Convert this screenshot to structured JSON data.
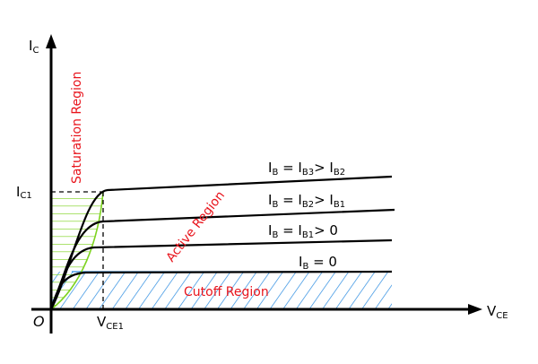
{
  "axes": {
    "y_label": "I",
    "y_label_sub": "C",
    "x_label": "V",
    "x_label_sub": "CE",
    "origin": "O",
    "ic1_label": "I",
    "ic1_sub": "C1",
    "vce1_label": "V",
    "vce1_sub": "CE1"
  },
  "regions": {
    "saturation": "Saturation Region",
    "active": "Active Region",
    "cutoff": "Cutoff Region"
  },
  "curves": [
    {
      "i": "I",
      "s": "B",
      "eq": " = I",
      "s2": "B3",
      "rest": "> I",
      "s3": "B2"
    },
    {
      "i": "I",
      "s": "B",
      "eq": " = I",
      "s2": "B2",
      "rest": "> I",
      "s3": "B1"
    },
    {
      "i": "I",
      "s": "B",
      "eq": " = I",
      "s2": "B1",
      "rest": "> 0",
      "s3": ""
    },
    {
      "i": "I",
      "s": "B",
      "eq": " = 0",
      "s2": "",
      "rest": "",
      "s3": ""
    }
  ],
  "colors": {
    "region_text": "#e8141c",
    "saturation_fill": "#7ed321",
    "cutoff_hatch": "#2a8be0"
  }
}
